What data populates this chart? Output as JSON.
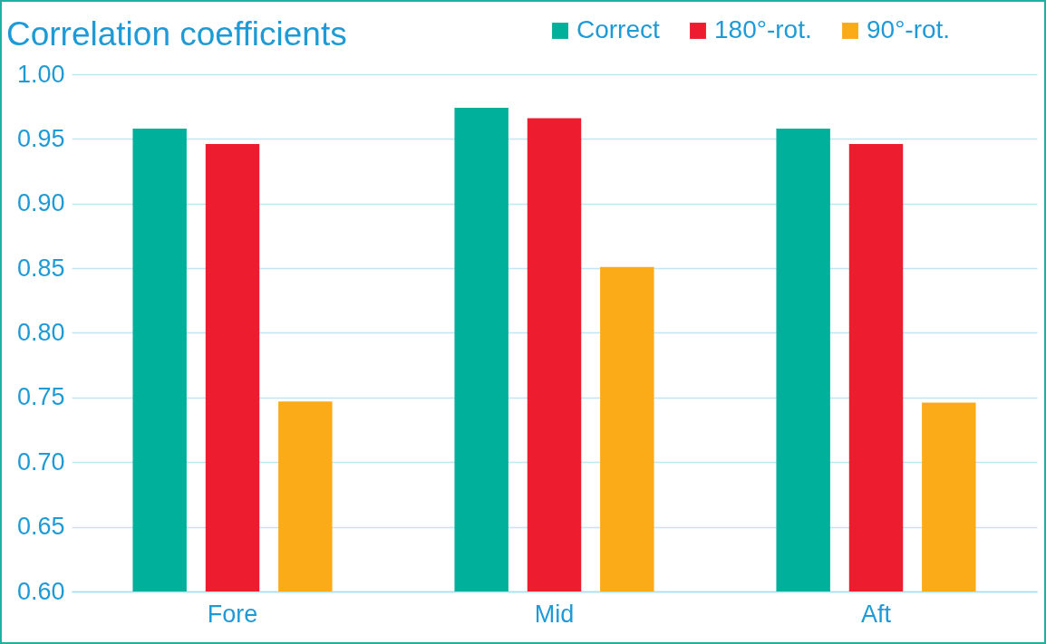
{
  "chart_data": {
    "type": "bar",
    "title": "Correlation coefficients",
    "categories": [
      "Fore",
      "Mid",
      "Aft"
    ],
    "series": [
      {
        "name": "Correct",
        "color": "#00b09b",
        "values": [
          0.958,
          0.974,
          0.958
        ]
      },
      {
        "name": "180°-rot.",
        "color": "#ed1c2e",
        "values": [
          0.946,
          0.966,
          0.946
        ]
      },
      {
        "name": "90°-rot.",
        "color": "#fbab18",
        "values": [
          0.747,
          0.851,
          0.746
        ]
      }
    ],
    "ylim": [
      0.6,
      1.0
    ],
    "yticks": [
      {
        "value": 0.6,
        "label": "0.60"
      },
      {
        "value": 0.65,
        "label": "0.65"
      },
      {
        "value": 0.7,
        "label": "0.70"
      },
      {
        "value": 0.75,
        "label": "0.75"
      },
      {
        "value": 0.8,
        "label": "0.80"
      },
      {
        "value": 0.85,
        "label": "0.85"
      },
      {
        "value": 0.9,
        "label": "0.90"
      },
      {
        "value": 0.95,
        "label": "0.95"
      },
      {
        "value": 1.0,
        "label": "1.00"
      }
    ],
    "grid": "y",
    "legend": "top right"
  }
}
